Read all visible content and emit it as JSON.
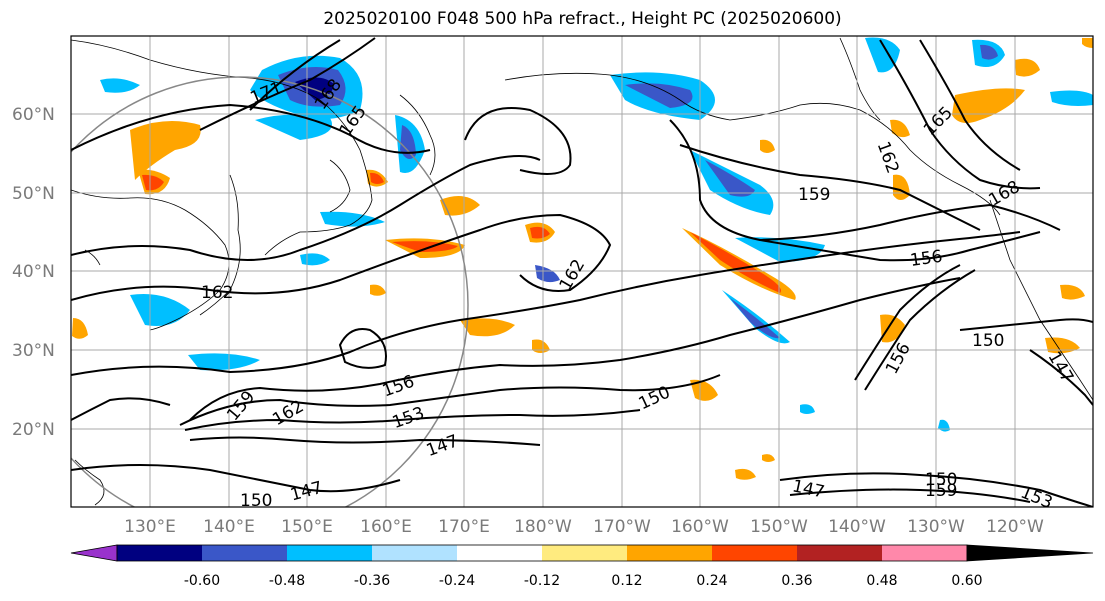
{
  "title": "2025020100 F048 500 hPa refract., Height PC (2025020600)",
  "map": {
    "projection": "cylindrical",
    "lon_range": [
      120,
      -112
    ],
    "lat_range": [
      10,
      70
    ],
    "lat_labels": [
      "60°N",
      "50°N",
      "40°N",
      "30°N",
      "20°N"
    ],
    "lon_labels": [
      "130°E",
      "140°E",
      "150°E",
      "160°E",
      "170°E",
      "180°W",
      "170°W",
      "160°W",
      "150°W",
      "140°W",
      "130°W",
      "120°W"
    ],
    "grid": true
  },
  "contour_labels": [
    "171",
    "168",
    "165",
    "162",
    "162",
    "162",
    "159",
    "159",
    "156",
    "156",
    "156",
    "153",
    "150",
    "150",
    "147",
    "147",
    "165",
    "162",
    "168",
    "150",
    "147",
    "150",
    "159",
    "147",
    "153"
  ],
  "colorbar": {
    "ticks": [
      "-0.60",
      "-0.48",
      "-0.36",
      "-0.24",
      "-0.12",
      "0.12",
      "0.24",
      "0.36",
      "0.48",
      "0.60"
    ],
    "colors": [
      "#9932cc",
      "#000080",
      "#3a57c8",
      "#00bfff",
      "#b0e2ff",
      "#ffffff",
      "#ffeb7f",
      "#ffa500",
      "#ff4500",
      "#b22222",
      "#ff88aa"
    ]
  }
}
